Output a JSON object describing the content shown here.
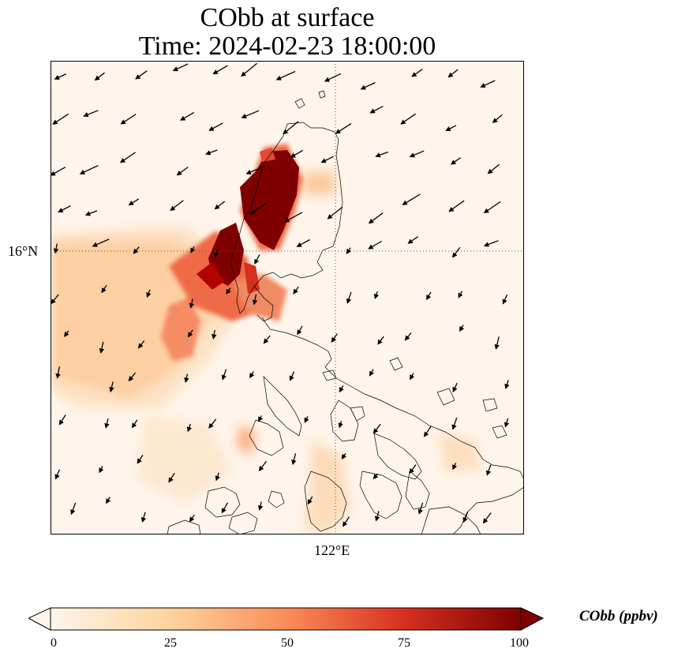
{
  "title_line1": "CObb at surface",
  "title_line2": "Time: 2024-02-23 18:00:00",
  "axes": {
    "lat_label": "16°N",
    "lon_label": "122°E",
    "gridline_style": "dotted"
  },
  "colorbar": {
    "label": "CObb (ppbv)",
    "ticks": [
      "0",
      "25",
      "50",
      "75",
      "100"
    ],
    "min": 0,
    "max": 100,
    "extend": "both",
    "colormap": "OrRd",
    "colors": [
      "#fff5eb",
      "#fdd49e",
      "#fc8d59",
      "#d7301f",
      "#7f0000"
    ]
  },
  "colors": {
    "land_outline": "#000000",
    "wind_arrow": "#000000",
    "background": "#ffffff"
  },
  "layers": [
    "CObb concentration field",
    "coastlines",
    "wind vectors",
    "lat/lon gridlines"
  ]
}
